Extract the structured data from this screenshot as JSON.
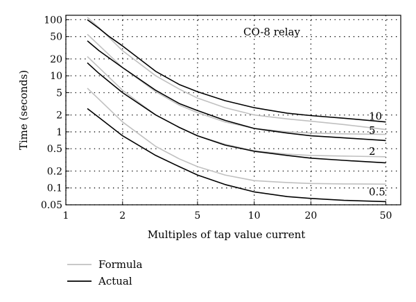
{
  "chart_data": {
    "type": "line",
    "title": "",
    "annotation": "CO-8 relay",
    "xlabel": "Multiples of tap value current",
    "ylabel": "Time (seconds)",
    "xscale": "log",
    "yscale": "log",
    "xlim": [
      1,
      60
    ],
    "ylim": [
      0.05,
      120
    ],
    "xticks": [
      1,
      2,
      5,
      10,
      20,
      50
    ],
    "xtick_labels": [
      "1",
      "2",
      "5",
      "10",
      "20",
      "50"
    ],
    "yticks": [
      0.05,
      0.1,
      0.2,
      0.5,
      1,
      2,
      5,
      10,
      20,
      50,
      100
    ],
    "ytick_labels": [
      "0.05",
      "0.1",
      "0.2",
      "0.5",
      "1",
      "2",
      "5",
      "10",
      "20",
      "50",
      "100"
    ],
    "grid": true,
    "grid_style": "dotted",
    "legend": {
      "placement": "below",
      "entries": [
        {
          "name": "Formula",
          "color": "#c0c0c0"
        },
        {
          "name": "Actual",
          "color": "#000000"
        }
      ]
    },
    "curve_labels": [
      "10",
      "5",
      "2",
      "0.5"
    ],
    "series": [
      {
        "name": "Formula",
        "curve": "10",
        "color": "#c0c0c0",
        "x": [
          1.3,
          1.5,
          2,
          3,
          4,
          5,
          7,
          10,
          15,
          20,
          30,
          50
        ],
        "y": [
          110,
          72,
          28,
          10,
          5.8,
          4,
          2.7,
          2.0,
          1.7,
          1.55,
          1.35,
          1.1
        ]
      },
      {
        "name": "Actual",
        "curve": "10",
        "color": "#000000",
        "x": [
          1.3,
          1.5,
          1.7,
          2,
          3,
          4,
          5,
          7,
          10,
          15,
          20,
          30,
          50
        ],
        "y": [
          100,
          70,
          50,
          34,
          12,
          7,
          5.2,
          3.6,
          2.7,
          2.15,
          1.95,
          1.75,
          1.5
        ]
      },
      {
        "name": "Formula",
        "curve": "5",
        "color": "#c0c0c0",
        "x": [
          1.3,
          1.5,
          2,
          3,
          4,
          5,
          7,
          10,
          15,
          20,
          30,
          50
        ],
        "y": [
          55,
          35,
          14,
          5.2,
          3.0,
          2.2,
          1.5,
          1.15,
          1.0,
          0.95,
          0.92,
          0.9
        ]
      },
      {
        "name": "Actual",
        "curve": "5",
        "color": "#000000",
        "x": [
          1.3,
          1.5,
          2,
          3,
          4,
          5,
          7,
          10,
          15,
          20,
          30,
          50
        ],
        "y": [
          42,
          28,
          14,
          5.5,
          3.2,
          2.4,
          1.6,
          1.15,
          0.95,
          0.85,
          0.78,
          0.7
        ]
      },
      {
        "name": "Formula",
        "curve": "2",
        "color": "#c0c0c0",
        "x": [
          1.3,
          1.5,
          2,
          3,
          4,
          5,
          7,
          10,
          15,
          20,
          30,
          50
        ],
        "y": [
          22,
          14,
          5.5,
          2.0,
          1.2,
          0.85,
          0.6,
          0.46,
          0.4,
          0.38,
          0.37,
          0.36
        ]
      },
      {
        "name": "Actual",
        "curve": "2",
        "color": "#000000",
        "x": [
          1.3,
          1.5,
          2,
          3,
          4,
          5,
          7,
          10,
          15,
          20,
          30,
          50
        ],
        "y": [
          17,
          11,
          5.0,
          2.0,
          1.2,
          0.85,
          0.58,
          0.45,
          0.38,
          0.34,
          0.31,
          0.28
        ]
      },
      {
        "name": "Formula",
        "curve": "0.5",
        "color": "#c0c0c0",
        "x": [
          1.3,
          1.5,
          2,
          3,
          4,
          5,
          7,
          10,
          15,
          20,
          30,
          50
        ],
        "y": [
          6.0,
          3.8,
          1.5,
          0.55,
          0.33,
          0.24,
          0.17,
          0.135,
          0.125,
          0.12,
          0.118,
          0.117
        ]
      },
      {
        "name": "Actual",
        "curve": "0.5",
        "color": "#000000",
        "x": [
          1.3,
          1.5,
          2,
          3,
          4,
          5,
          7,
          10,
          15,
          20,
          30,
          50
        ],
        "y": [
          2.6,
          1.8,
          0.85,
          0.38,
          0.24,
          0.17,
          0.115,
          0.085,
          0.07,
          0.065,
          0.06,
          0.057
        ]
      }
    ]
  }
}
